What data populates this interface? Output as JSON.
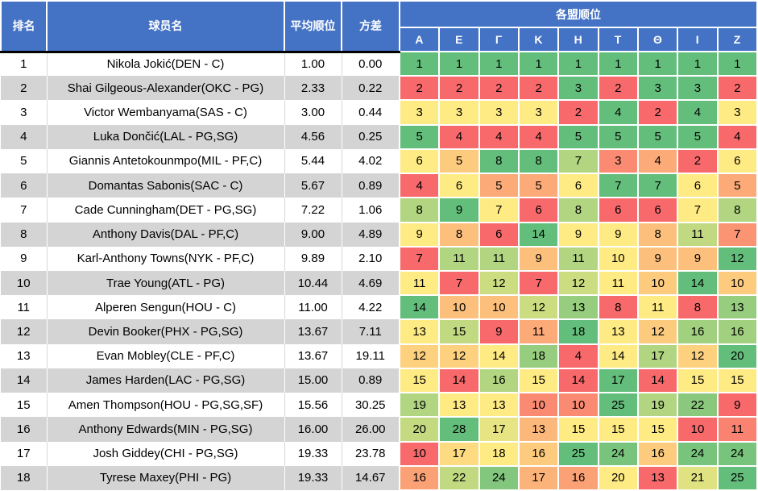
{
  "colors": {
    "header_bg": "#4472C4",
    "header_text": "#FFFFFF",
    "row_alt_bg": "#D4D4D4",
    "header_bottom_border": "#000000",
    "cell_text": "#000000"
  },
  "chart_data": {
    "type": "table",
    "title": "",
    "columns": {
      "rank": "排名",
      "player": "球员名",
      "avg": "平均顺位",
      "variance": "方差",
      "leagues_group": "各盟顺位"
    },
    "league_columns": [
      "Α",
      "Ε",
      "Γ",
      "Κ",
      "Η",
      "Τ",
      "Θ",
      "Ι",
      "Ζ"
    ],
    "color_scale": {
      "rule": "per-row 3-color scale: min=red, median=yellow, max=green, linear interpolation",
      "min": "#F8696B",
      "mid": "#FFEB84",
      "max": "#63BE7B"
    },
    "rows": [
      {
        "rank": "1",
        "player": "Nikola Jokić(DEN - C)",
        "avg": "1.00",
        "variance": "0.00",
        "leagues": [
          1,
          1,
          1,
          1,
          1,
          1,
          1,
          1,
          1
        ]
      },
      {
        "rank": "2",
        "player": "Shai Gilgeous-Alexander(OKC - PG)",
        "avg": "2.33",
        "variance": "0.22",
        "leagues": [
          2,
          2,
          2,
          2,
          3,
          2,
          3,
          3,
          2
        ]
      },
      {
        "rank": "3",
        "player": "Victor Wembanyama(SAS - C)",
        "avg": "3.00",
        "variance": "0.44",
        "leagues": [
          3,
          3,
          3,
          3,
          2,
          4,
          2,
          4,
          3
        ]
      },
      {
        "rank": "4",
        "player": "Luka Dončić(LAL - PG,SG)",
        "avg": "4.56",
        "variance": "0.25",
        "leagues": [
          5,
          4,
          4,
          4,
          5,
          5,
          5,
          5,
          4
        ]
      },
      {
        "rank": "5",
        "player": "Giannis Antetokounmpo(MIL - PF,C)",
        "avg": "5.44",
        "variance": "4.02",
        "leagues": [
          6,
          5,
          8,
          8,
          7,
          3,
          4,
          2,
          6
        ]
      },
      {
        "rank": "6",
        "player": "Domantas Sabonis(SAC - C)",
        "avg": "5.67",
        "variance": "0.89",
        "leagues": [
          4,
          6,
          5,
          5,
          6,
          7,
          7,
          6,
          5
        ]
      },
      {
        "rank": "7",
        "player": "Cade Cunningham(DET - PG,SG)",
        "avg": "7.22",
        "variance": "1.06",
        "leagues": [
          8,
          9,
          7,
          6,
          8,
          6,
          6,
          7,
          8
        ]
      },
      {
        "rank": "8",
        "player": "Anthony Davis(DAL - PF,C)",
        "avg": "9.00",
        "variance": "4.89",
        "leagues": [
          9,
          8,
          6,
          14,
          9,
          9,
          8,
          11,
          7
        ]
      },
      {
        "rank": "9",
        "player": "Karl-Anthony Towns(NYK - PF,C)",
        "avg": "9.89",
        "variance": "2.10",
        "leagues": [
          7,
          11,
          11,
          9,
          11,
          10,
          9,
          9,
          12
        ]
      },
      {
        "rank": "10",
        "player": "Trae Young(ATL - PG)",
        "avg": "10.44",
        "variance": "4.69",
        "leagues": [
          11,
          7,
          12,
          7,
          12,
          11,
          10,
          14,
          10
        ]
      },
      {
        "rank": "11",
        "player": "Alperen Sengun(HOU - C)",
        "avg": "11.00",
        "variance": "4.22",
        "leagues": [
          14,
          10,
          10,
          12,
          13,
          8,
          11,
          8,
          13
        ]
      },
      {
        "rank": "12",
        "player": "Devin Booker(PHX - PG,SG)",
        "avg": "13.67",
        "variance": "7.11",
        "leagues": [
          13,
          15,
          9,
          11,
          18,
          13,
          12,
          16,
          16
        ]
      },
      {
        "rank": "13",
        "player": "Evan Mobley(CLE - PF,C)",
        "avg": "13.67",
        "variance": "19.11",
        "leagues": [
          12,
          12,
          14,
          18,
          4,
          14,
          17,
          12,
          20
        ]
      },
      {
        "rank": "14",
        "player": "James Harden(LAC - PG,SG)",
        "avg": "15.00",
        "variance": "0.89",
        "leagues": [
          15,
          14,
          16,
          15,
          14,
          17,
          14,
          15,
          15
        ]
      },
      {
        "rank": "15",
        "player": "Amen Thompson(HOU - PG,SG,SF)",
        "avg": "15.56",
        "variance": "30.25",
        "leagues": [
          19,
          13,
          13,
          10,
          10,
          25,
          19,
          22,
          9
        ]
      },
      {
        "rank": "16",
        "player": "Anthony Edwards(MIN - PG,SG)",
        "avg": "16.00",
        "variance": "26.00",
        "leagues": [
          20,
          28,
          17,
          13,
          15,
          15,
          15,
          10,
          11
        ]
      },
      {
        "rank": "17",
        "player": "Josh Giddey(CHI - PG,SG)",
        "avg": "19.33",
        "variance": "23.78",
        "leagues": [
          10,
          17,
          18,
          16,
          25,
          24,
          16,
          24,
          24
        ]
      },
      {
        "rank": "18",
        "player": "Tyrese Maxey(PHI - PG)",
        "avg": "19.33",
        "variance": "14.67",
        "leagues": [
          16,
          22,
          24,
          17,
          16,
          20,
          13,
          21,
          25
        ]
      }
    ]
  }
}
